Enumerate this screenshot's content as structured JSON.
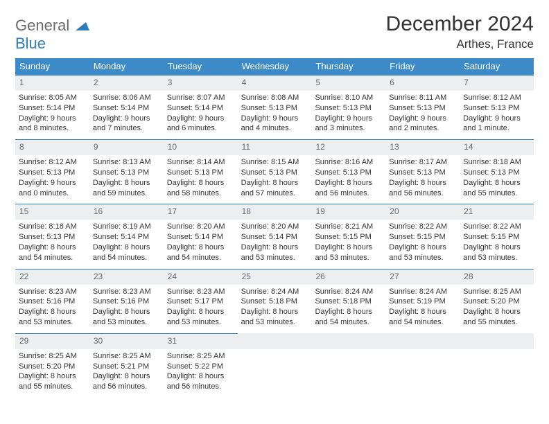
{
  "brand": {
    "part1": "General",
    "part2": "Blue"
  },
  "title": "December 2024",
  "location": "Arthes, France",
  "header_bg": "#3c8ac7",
  "daynum_bg": "#eceeef",
  "border_color": "#2f7bbf",
  "weekdays": [
    "Sunday",
    "Monday",
    "Tuesday",
    "Wednesday",
    "Thursday",
    "Friday",
    "Saturday"
  ],
  "weeks": [
    [
      {
        "n": "1",
        "sr": "Sunrise: 8:05 AM",
        "ss": "Sunset: 5:14 PM",
        "d1": "Daylight: 9 hours",
        "d2": "and 8 minutes."
      },
      {
        "n": "2",
        "sr": "Sunrise: 8:06 AM",
        "ss": "Sunset: 5:14 PM",
        "d1": "Daylight: 9 hours",
        "d2": "and 7 minutes."
      },
      {
        "n": "3",
        "sr": "Sunrise: 8:07 AM",
        "ss": "Sunset: 5:14 PM",
        "d1": "Daylight: 9 hours",
        "d2": "and 6 minutes."
      },
      {
        "n": "4",
        "sr": "Sunrise: 8:08 AM",
        "ss": "Sunset: 5:13 PM",
        "d1": "Daylight: 9 hours",
        "d2": "and 4 minutes."
      },
      {
        "n": "5",
        "sr": "Sunrise: 8:10 AM",
        "ss": "Sunset: 5:13 PM",
        "d1": "Daylight: 9 hours",
        "d2": "and 3 minutes."
      },
      {
        "n": "6",
        "sr": "Sunrise: 8:11 AM",
        "ss": "Sunset: 5:13 PM",
        "d1": "Daylight: 9 hours",
        "d2": "and 2 minutes."
      },
      {
        "n": "7",
        "sr": "Sunrise: 8:12 AM",
        "ss": "Sunset: 5:13 PM",
        "d1": "Daylight: 9 hours",
        "d2": "and 1 minute."
      }
    ],
    [
      {
        "n": "8",
        "sr": "Sunrise: 8:12 AM",
        "ss": "Sunset: 5:13 PM",
        "d1": "Daylight: 9 hours",
        "d2": "and 0 minutes."
      },
      {
        "n": "9",
        "sr": "Sunrise: 8:13 AM",
        "ss": "Sunset: 5:13 PM",
        "d1": "Daylight: 8 hours",
        "d2": "and 59 minutes."
      },
      {
        "n": "10",
        "sr": "Sunrise: 8:14 AM",
        "ss": "Sunset: 5:13 PM",
        "d1": "Daylight: 8 hours",
        "d2": "and 58 minutes."
      },
      {
        "n": "11",
        "sr": "Sunrise: 8:15 AM",
        "ss": "Sunset: 5:13 PM",
        "d1": "Daylight: 8 hours",
        "d2": "and 57 minutes."
      },
      {
        "n": "12",
        "sr": "Sunrise: 8:16 AM",
        "ss": "Sunset: 5:13 PM",
        "d1": "Daylight: 8 hours",
        "d2": "and 56 minutes."
      },
      {
        "n": "13",
        "sr": "Sunrise: 8:17 AM",
        "ss": "Sunset: 5:13 PM",
        "d1": "Daylight: 8 hours",
        "d2": "and 56 minutes."
      },
      {
        "n": "14",
        "sr": "Sunrise: 8:18 AM",
        "ss": "Sunset: 5:13 PM",
        "d1": "Daylight: 8 hours",
        "d2": "and 55 minutes."
      }
    ],
    [
      {
        "n": "15",
        "sr": "Sunrise: 8:18 AM",
        "ss": "Sunset: 5:13 PM",
        "d1": "Daylight: 8 hours",
        "d2": "and 54 minutes."
      },
      {
        "n": "16",
        "sr": "Sunrise: 8:19 AM",
        "ss": "Sunset: 5:14 PM",
        "d1": "Daylight: 8 hours",
        "d2": "and 54 minutes."
      },
      {
        "n": "17",
        "sr": "Sunrise: 8:20 AM",
        "ss": "Sunset: 5:14 PM",
        "d1": "Daylight: 8 hours",
        "d2": "and 54 minutes."
      },
      {
        "n": "18",
        "sr": "Sunrise: 8:20 AM",
        "ss": "Sunset: 5:14 PM",
        "d1": "Daylight: 8 hours",
        "d2": "and 53 minutes."
      },
      {
        "n": "19",
        "sr": "Sunrise: 8:21 AM",
        "ss": "Sunset: 5:15 PM",
        "d1": "Daylight: 8 hours",
        "d2": "and 53 minutes."
      },
      {
        "n": "20",
        "sr": "Sunrise: 8:22 AM",
        "ss": "Sunset: 5:15 PM",
        "d1": "Daylight: 8 hours",
        "d2": "and 53 minutes."
      },
      {
        "n": "21",
        "sr": "Sunrise: 8:22 AM",
        "ss": "Sunset: 5:15 PM",
        "d1": "Daylight: 8 hours",
        "d2": "and 53 minutes."
      }
    ],
    [
      {
        "n": "22",
        "sr": "Sunrise: 8:23 AM",
        "ss": "Sunset: 5:16 PM",
        "d1": "Daylight: 8 hours",
        "d2": "and 53 minutes."
      },
      {
        "n": "23",
        "sr": "Sunrise: 8:23 AM",
        "ss": "Sunset: 5:16 PM",
        "d1": "Daylight: 8 hours",
        "d2": "and 53 minutes."
      },
      {
        "n": "24",
        "sr": "Sunrise: 8:23 AM",
        "ss": "Sunset: 5:17 PM",
        "d1": "Daylight: 8 hours",
        "d2": "and 53 minutes."
      },
      {
        "n": "25",
        "sr": "Sunrise: 8:24 AM",
        "ss": "Sunset: 5:18 PM",
        "d1": "Daylight: 8 hours",
        "d2": "and 53 minutes."
      },
      {
        "n": "26",
        "sr": "Sunrise: 8:24 AM",
        "ss": "Sunset: 5:18 PM",
        "d1": "Daylight: 8 hours",
        "d2": "and 54 minutes."
      },
      {
        "n": "27",
        "sr": "Sunrise: 8:24 AM",
        "ss": "Sunset: 5:19 PM",
        "d1": "Daylight: 8 hours",
        "d2": "and 54 minutes."
      },
      {
        "n": "28",
        "sr": "Sunrise: 8:25 AM",
        "ss": "Sunset: 5:20 PM",
        "d1": "Daylight: 8 hours",
        "d2": "and 55 minutes."
      }
    ],
    [
      {
        "n": "29",
        "sr": "Sunrise: 8:25 AM",
        "ss": "Sunset: 5:20 PM",
        "d1": "Daylight: 8 hours",
        "d2": "and 55 minutes."
      },
      {
        "n": "30",
        "sr": "Sunrise: 8:25 AM",
        "ss": "Sunset: 5:21 PM",
        "d1": "Daylight: 8 hours",
        "d2": "and 56 minutes."
      },
      {
        "n": "31",
        "sr": "Sunrise: 8:25 AM",
        "ss": "Sunset: 5:22 PM",
        "d1": "Daylight: 8 hours",
        "d2": "and 56 minutes."
      },
      {
        "empty": true
      },
      {
        "empty": true
      },
      {
        "empty": true
      },
      {
        "empty": true
      }
    ]
  ]
}
